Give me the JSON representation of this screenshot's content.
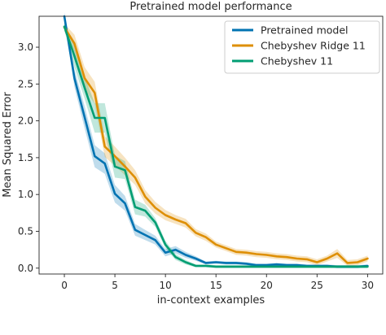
{
  "chart_data": {
    "type": "line",
    "title": "Pretrained model performance",
    "xlabel": "in-context examples",
    "ylabel": "Mean Squared Error",
    "xlim": [
      -2.5,
      31.5
    ],
    "ylim": [
      -0.08,
      3.42
    ],
    "xticks": [
      0,
      5,
      10,
      15,
      20,
      25,
      30
    ],
    "yticks": [
      0.0,
      0.5,
      1.0,
      1.5,
      2.0,
      2.5,
      3.0
    ],
    "ytick_labels": [
      "0.0",
      "0.5",
      "1.0",
      "1.5",
      "2.0",
      "2.5",
      "3.0"
    ],
    "grid": false,
    "legend_position": "top-right",
    "series": [
      {
        "name": "Pretrained model",
        "color": "#0173b2",
        "x": [
          0,
          1,
          2,
          3,
          4,
          5,
          6,
          7,
          8,
          9,
          10,
          11,
          12,
          13,
          14,
          15,
          16,
          17,
          18,
          19,
          20,
          21,
          22,
          23,
          24,
          25,
          26,
          27,
          28,
          29,
          30
        ],
        "y": [
          3.42,
          2.58,
          2.05,
          1.52,
          1.42,
          1.01,
          0.88,
          0.52,
          0.45,
          0.38,
          0.21,
          0.25,
          0.18,
          0.13,
          0.07,
          0.08,
          0.07,
          0.07,
          0.06,
          0.04,
          0.04,
          0.05,
          0.04,
          0.04,
          0.03,
          0.03,
          0.03,
          0.02,
          0.02,
          0.02,
          0.03
        ],
        "band": [
          0.05,
          0.12,
          0.15,
          0.15,
          0.14,
          0.12,
          0.1,
          0.08,
          0.07,
          0.06,
          0.05,
          0.05,
          0.04,
          0.03,
          0.02,
          0.02,
          0.02,
          0.02,
          0.02,
          0.02,
          0.02,
          0.02,
          0.02,
          0.02,
          0.02,
          0.02,
          0.02,
          0.02,
          0.02,
          0.02,
          0.02
        ]
      },
      {
        "name": "Chebyshev Ridge 11",
        "color": "#de8f05",
        "x": [
          0,
          1,
          2,
          3,
          4,
          5,
          6,
          7,
          8,
          9,
          10,
          11,
          12,
          13,
          14,
          15,
          16,
          17,
          18,
          19,
          20,
          21,
          22,
          23,
          24,
          25,
          26,
          27,
          28,
          29,
          30
        ],
        "y": [
          3.27,
          3.05,
          2.58,
          2.38,
          1.65,
          1.52,
          1.38,
          1.23,
          0.97,
          0.82,
          0.72,
          0.66,
          0.61,
          0.48,
          0.42,
          0.32,
          0.27,
          0.22,
          0.21,
          0.19,
          0.18,
          0.16,
          0.15,
          0.13,
          0.12,
          0.08,
          0.13,
          0.2,
          0.07,
          0.08,
          0.13
        ],
        "band": [
          0.05,
          0.12,
          0.15,
          0.15,
          0.14,
          0.13,
          0.12,
          0.1,
          0.09,
          0.08,
          0.07,
          0.06,
          0.06,
          0.05,
          0.05,
          0.04,
          0.04,
          0.04,
          0.04,
          0.04,
          0.04,
          0.04,
          0.04,
          0.04,
          0.04,
          0.04,
          0.04,
          0.06,
          0.04,
          0.04,
          0.04
        ]
      },
      {
        "name": "Chebyshev 11",
        "color": "#029e73",
        "x": [
          0,
          1,
          2,
          3,
          4,
          5,
          6,
          7,
          8,
          9,
          10,
          11,
          12,
          13,
          14,
          15,
          16,
          17,
          18,
          19,
          20,
          21,
          22,
          23,
          24,
          25,
          26,
          27,
          28,
          29,
          30
        ],
        "y": [
          3.28,
          2.88,
          2.45,
          2.04,
          2.04,
          1.38,
          1.33,
          0.83,
          0.78,
          0.62,
          0.32,
          0.15,
          0.08,
          0.03,
          0.03,
          0.02,
          0.02,
          0.02,
          0.02,
          0.02,
          0.02,
          0.02,
          0.02,
          0.02,
          0.02,
          0.02,
          0.02,
          0.02,
          0.02,
          0.02,
          0.02
        ],
        "band": [
          0.05,
          0.15,
          0.15,
          0.2,
          0.2,
          0.15,
          0.12,
          0.1,
          0.08,
          0.06,
          0.05,
          0.04,
          0.03,
          0.02,
          0.02,
          0.02,
          0.02,
          0.02,
          0.02,
          0.02,
          0.02,
          0.02,
          0.02,
          0.02,
          0.02,
          0.02,
          0.02,
          0.02,
          0.02,
          0.02,
          0.02
        ]
      }
    ]
  }
}
